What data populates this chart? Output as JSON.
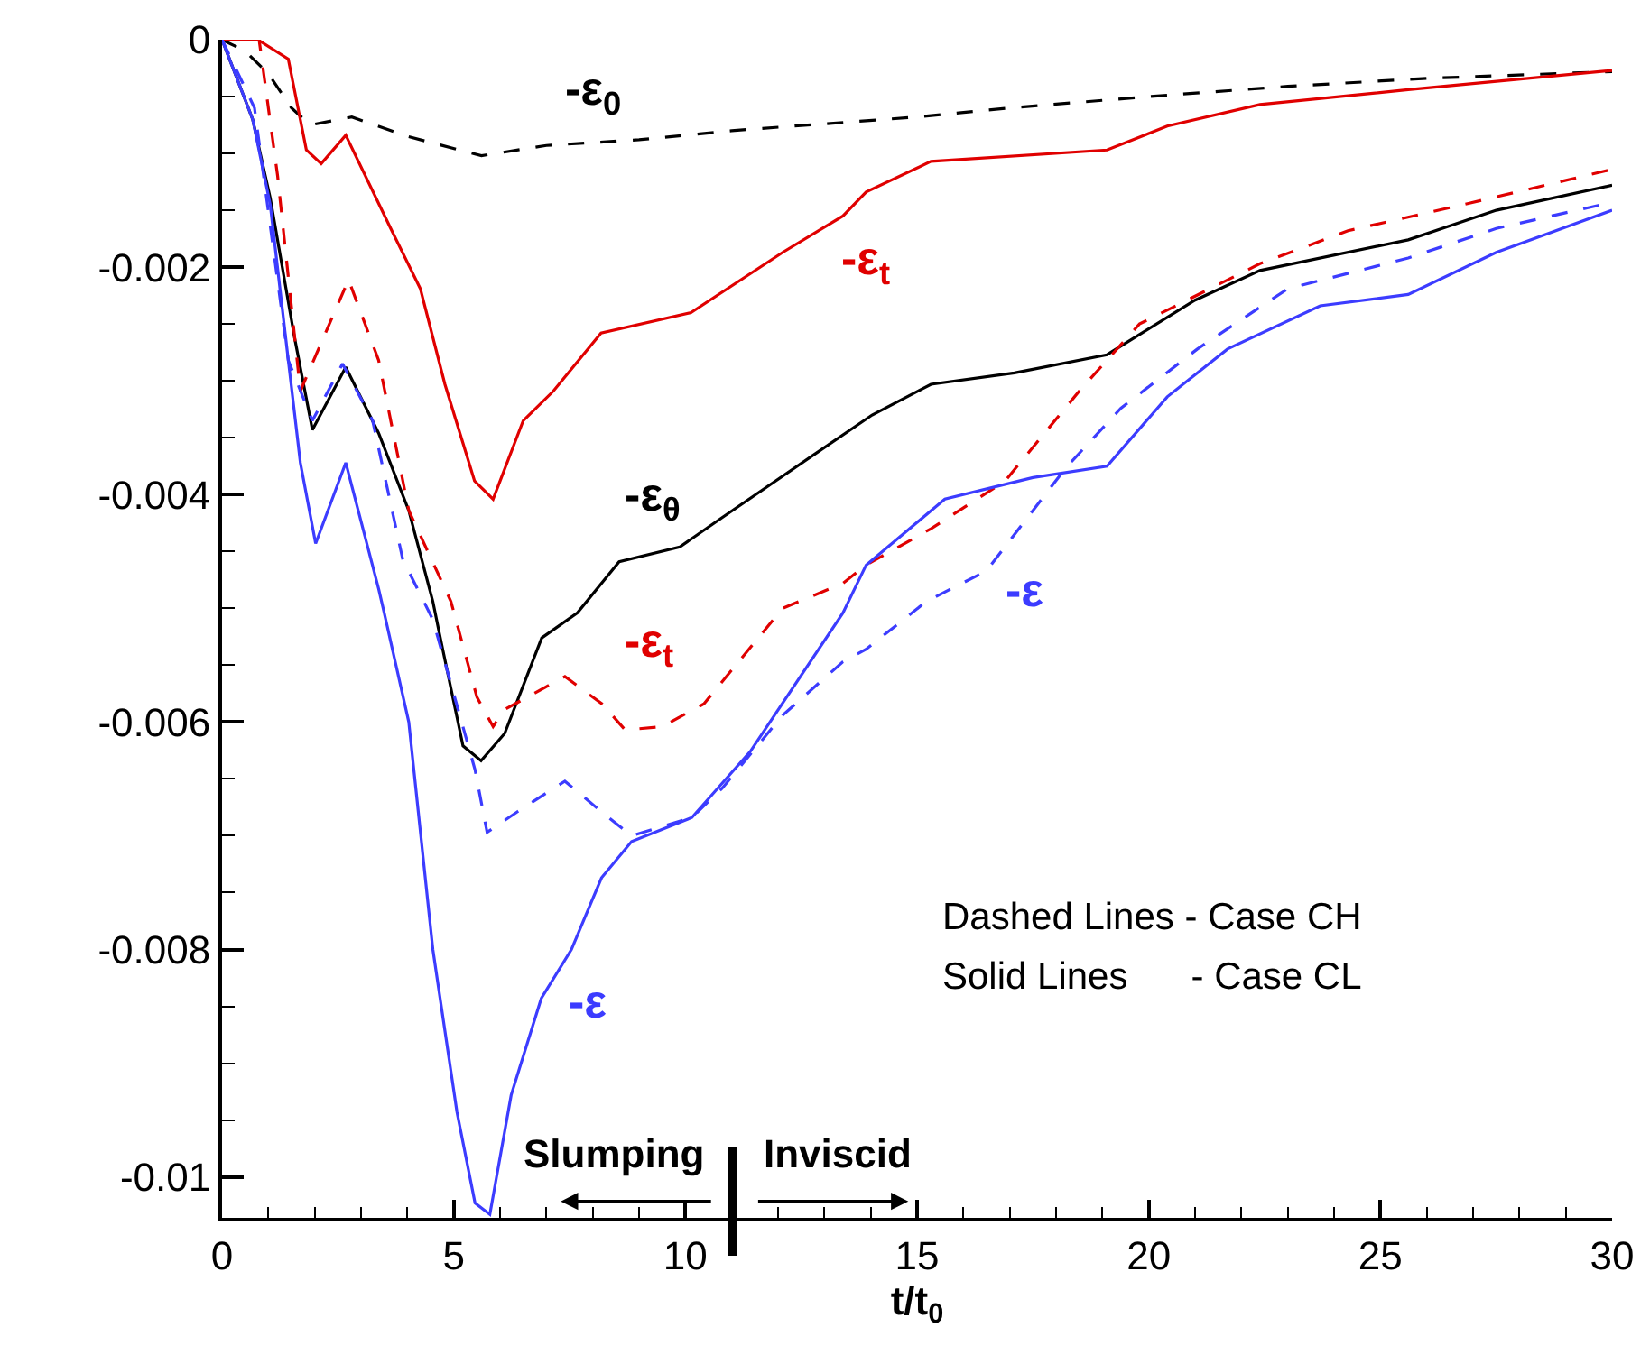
{
  "chart_data": {
    "type": "line",
    "xlabel": "t/t$_{0}$",
    "xlim": [
      0,
      30
    ],
    "ylim": [
      -0.01036,
      0
    ],
    "xticks": [
      0,
      {
        "value": 1,
        "label": null
      },
      {
        "value": 2,
        "label": null
      },
      {
        "value": 3,
        "label": null
      },
      {
        "value": 4,
        "label": null
      },
      5,
      {
        "value": 6,
        "label": null
      },
      {
        "value": 7,
        "label": null
      },
      {
        "value": 8,
        "label": null
      },
      {
        "value": 9,
        "label": null
      },
      10,
      {
        "value": 11,
        "label": null
      },
      {
        "value": 12,
        "label": null
      },
      {
        "value": 13,
        "label": null
      },
      {
        "value": 14,
        "label": null
      },
      15,
      {
        "value": 16,
        "label": null
      },
      {
        "value": 17,
        "label": null
      },
      {
        "value": 18,
        "label": null
      },
      {
        "value": 19,
        "label": null
      },
      20,
      {
        "value": 21,
        "label": null
      },
      {
        "value": 22,
        "label": null
      },
      {
        "value": 23,
        "label": null
      },
      {
        "value": 24,
        "label": null
      },
      25,
      {
        "value": 26,
        "label": null
      },
      {
        "value": 27,
        "label": null
      },
      {
        "value": 28,
        "label": null
      },
      {
        "value": 29,
        "label": null
      },
      30
    ],
    "yticks": [
      0,
      {
        "value": -0.0005,
        "label": null
      },
      {
        "value": -0.001,
        "label": null
      },
      {
        "value": -0.0015,
        "label": null
      },
      -0.002,
      {
        "value": -0.0025,
        "label": null
      },
      {
        "value": -0.003,
        "label": null
      },
      {
        "value": -0.0035,
        "label": null
      },
      -0.004,
      {
        "value": -0.0045,
        "label": null
      },
      {
        "value": -0.005,
        "label": null
      },
      {
        "value": -0.0055,
        "label": null
      },
      -0.006,
      {
        "value": -0.0065,
        "label": null
      },
      {
        "value": -0.007,
        "label": null
      },
      {
        "value": -0.0075,
        "label": null
      },
      -0.008,
      {
        "value": -0.0085,
        "label": null
      },
      {
        "value": -0.009,
        "label": null
      },
      {
        "value": -0.0095,
        "label": null
      },
      -0.01
    ],
    "grid": false,
    "legend": false,
    "marker": "none",
    "series": [
      {
        "name": "-ε$_{0}$",
        "color": "#000000",
        "line_style": "dashed",
        "x": [
          0,
          0.5,
          1,
          1.5,
          1.9,
          2.8,
          4,
          5.6,
          7,
          9,
          11,
          13,
          15,
          17,
          20,
          23,
          26,
          30
        ],
        "values": [
          0,
          -0.0001,
          -0.0003,
          -0.0006,
          -0.00075,
          -0.00068,
          -0.00085,
          -0.00102,
          -0.00093,
          -0.00088,
          -0.0008,
          -0.00074,
          -0.00068,
          -0.0006,
          -0.0005,
          -0.00041,
          -0.00034,
          -0.00028
        ]
      },
      {
        "name": "-ε$_{θ}$",
        "color": "#000000",
        "line_style": "solid",
        "x": [
          0,
          0.66,
          1.04,
          1.56,
          1.95,
          2.67,
          3.38,
          4.03,
          4.55,
          4.68,
          5.2,
          5.59,
          6.1,
          6.9,
          7.67,
          8.57,
          9.88,
          10.8,
          12.7,
          14.03,
          15.3,
          17.1,
          19.1,
          21,
          22.4,
          25.6,
          27.5,
          30
        ],
        "values": [
          0,
          -0.0007,
          -0.00139,
          -0.00261,
          -0.00343,
          -0.00288,
          -0.00346,
          -0.00414,
          -0.00494,
          -0.0052,
          -0.00621,
          -0.00634,
          -0.0061,
          -0.00526,
          -0.00504,
          -0.00459,
          -0.00446,
          -0.0042,
          -0.00367,
          -0.0033,
          -0.00303,
          -0.00293,
          -0.00277,
          -0.00229,
          -0.00203,
          -0.00176,
          -0.0015,
          -0.00128
        ]
      },
      {
        "name": "-ε$_{t}$",
        "color": "#e00000",
        "line_style": "solid",
        "x": [
          0,
          0.77,
          1.43,
          1.82,
          2.14,
          2.67,
          3.64,
          4.28,
          4.81,
          5.45,
          5.85,
          6.5,
          7.15,
          8.18,
          10.12,
          12.1,
          13.4,
          13.9,
          15.3,
          19.1,
          20.4,
          22.4,
          25.6,
          30
        ],
        "values": [
          0,
          0,
          -0.00017,
          -0.00097,
          -0.00109,
          -0.00084,
          -0.00166,
          -0.00219,
          -0.00303,
          -0.00388,
          -0.00404,
          -0.00335,
          -0.00309,
          -0.00258,
          -0.0024,
          -0.00187,
          -0.00155,
          -0.00134,
          -0.00107,
          -0.00097,
          -0.00076,
          -0.00057,
          -0.00044,
          -0.00027
        ]
      },
      {
        "name": "-ε$_{t}$",
        "color": "#e00000",
        "line_style": "dashed",
        "x": [
          0,
          0.8,
          1.2,
          1.69,
          2.73,
          3.38,
          4.03,
          4.94,
          5.5,
          5.85,
          6.1,
          7.4,
          8.2,
          8.7,
          9.5,
          10.4,
          12.1,
          13.4,
          13.9,
          15.3,
          16.9,
          18.5,
          19.8,
          22.4,
          24.3,
          26.9,
          30
        ],
        "values": [
          0,
          0,
          -0.0012,
          -0.00309,
          -0.00211,
          -0.00282,
          -0.00414,
          -0.00494,
          -0.00578,
          -0.00604,
          -0.00589,
          -0.0056,
          -0.00584,
          -0.00607,
          -0.00604,
          -0.00584,
          -0.005,
          -0.00478,
          -0.00462,
          -0.0043,
          -0.00388,
          -0.00309,
          -0.0025,
          -0.00197,
          -0.00168,
          -0.00144,
          -0.00114
        ]
      },
      {
        "name": "-ε",
        "color": "#3c3cff",
        "line_style": "solid",
        "x": [
          0,
          0.66,
          1.04,
          1.37,
          1.69,
          2.02,
          2.67,
          3.38,
          3.5,
          4.03,
          4.55,
          5.07,
          5.46,
          5.78,
          6.24,
          6.89,
          7.54,
          8.19,
          8.84,
          10.14,
          11.4,
          13.4,
          13.9,
          15.6,
          17.5,
          19.1,
          20.4,
          21.7,
          23.7,
          25.6,
          27.5,
          30
        ],
        "values": [
          0,
          -0.0007,
          -0.00145,
          -0.00261,
          -0.00372,
          -0.00443,
          -0.00372,
          -0.00483,
          -0.00504,
          -0.006,
          -0.008,
          -0.00943,
          -0.01023,
          -0.01033,
          -0.00928,
          -0.00843,
          -0.008,
          -0.00737,
          -0.00705,
          -0.00684,
          -0.00626,
          -0.00504,
          -0.00462,
          -0.00404,
          -0.00385,
          -0.00375,
          -0.00314,
          -0.00272,
          -0.00234,
          -0.00224,
          -0.00187,
          -0.0015
        ]
      },
      {
        "name": "-ε",
        "color": "#3c3cff",
        "line_style": "dashed",
        "x": [
          0,
          0.7,
          1.43,
          1.95,
          2.6,
          3.25,
          3.9,
          4.55,
          5.46,
          5.72,
          6.37,
          7.4,
          8.19,
          8.84,
          10.14,
          10.8,
          12.1,
          13.4,
          13.9,
          15.2,
          16.5,
          17.5,
          18.2,
          19.4,
          21.05,
          23,
          25.6,
          27.5,
          30
        ],
        "values": [
          0,
          -0.0006,
          -0.00282,
          -0.00335,
          -0.00285,
          -0.00335,
          -0.00457,
          -0.0051,
          -0.00642,
          -0.00697,
          -0.00679,
          -0.00652,
          -0.00679,
          -0.007,
          -0.00684,
          -0.00658,
          -0.00594,
          -0.00547,
          -0.00536,
          -0.00494,
          -0.00467,
          -0.00414,
          -0.00377,
          -0.00324,
          -0.00272,
          -0.00219,
          -0.00192,
          -0.00166,
          -0.00143
        ]
      }
    ],
    "annotations": [
      "Dashed Lines - Case CH",
      "Solid Lines      - Case CL",
      "Slumping",
      "Inviscid"
    ]
  }
}
